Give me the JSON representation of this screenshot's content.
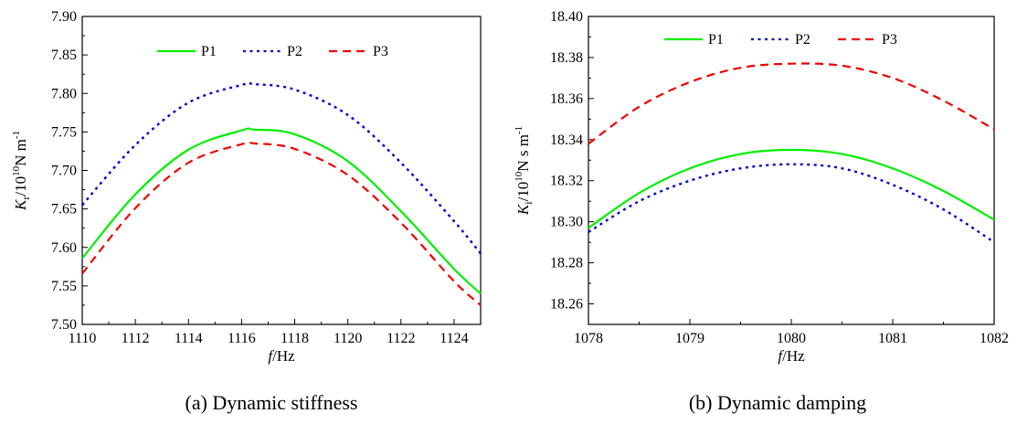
{
  "chart_data": [
    {
      "type": "line",
      "caption": "(a) Dynamic stiffness",
      "xlabel": {
        "italic": "f",
        "rest": "/Hz"
      },
      "ylabel": {
        "italic": "K",
        "sub": "r",
        "base": "/10",
        "exp": "10",
        "unit": "N  m",
        "unit_exp": "-1"
      },
      "xlim": [
        1110,
        1125
      ],
      "ylim": [
        7.5,
        7.9
      ],
      "xticks": [
        "1110",
        "1112",
        "1114",
        "1116",
        "1118",
        "1120",
        "1122",
        "1124"
      ],
      "yticks": [
        "7.50",
        "7.55",
        "7.60",
        "7.65",
        "7.70",
        "7.75",
        "7.80",
        "7.85",
        "7.90"
      ],
      "legend_position": "top-center",
      "series": [
        {
          "name": "P1",
          "color": "#00ee00",
          "style": "solid",
          "x": [
            1110,
            1112,
            1114,
            1116,
            1116.5,
            1118,
            1120,
            1122,
            1124,
            1125
          ],
          "y": [
            7.586,
            7.669,
            7.727,
            7.752,
            7.753,
            7.747,
            7.712,
            7.647,
            7.572,
            7.54
          ]
        },
        {
          "name": "P2",
          "color": "#0000cc",
          "style": "dotted",
          "x": [
            1110,
            1112,
            1114,
            1116,
            1116.5,
            1118,
            1120,
            1122,
            1124,
            1125
          ],
          "y": [
            7.655,
            7.733,
            7.788,
            7.811,
            7.812,
            7.805,
            7.772,
            7.71,
            7.634,
            7.592
          ]
        },
        {
          "name": "P3",
          "color": "#ee0000",
          "style": "dashed",
          "x": [
            1110,
            1112,
            1114,
            1116,
            1116.5,
            1118,
            1120,
            1122,
            1124,
            1125
          ],
          "y": [
            7.566,
            7.651,
            7.71,
            7.734,
            7.735,
            7.728,
            7.694,
            7.632,
            7.556,
            7.525
          ]
        }
      ]
    },
    {
      "type": "line",
      "caption": "(b) Dynamic damping",
      "xlabel": {
        "italic": "f",
        "rest": "/Hz"
      },
      "ylabel": {
        "italic": "K",
        "sub": "i",
        "base": "/10",
        "exp": "10",
        "unit": "N  s  m",
        "unit_exp": "-1"
      },
      "xlim": [
        1078,
        1082
      ],
      "ylim": [
        18.25,
        18.4
      ],
      "xticks": [
        "1078",
        "1079",
        "1080",
        "1081",
        "1082"
      ],
      "yticks": [
        "18.26",
        "18.28",
        "18.30",
        "18.32",
        "18.34",
        "18.36",
        "18.38",
        "18.40"
      ],
      "legend_position": "top-center",
      "series": [
        {
          "name": "P1",
          "color": "#00ee00",
          "style": "solid",
          "x": [
            1078,
            1078.5,
            1079,
            1079.5,
            1080,
            1080.5,
            1081,
            1081.5,
            1082
          ],
          "y": [
            18.297,
            18.314,
            18.326,
            18.333,
            18.335,
            18.333,
            18.326,
            18.315,
            18.301
          ]
        },
        {
          "name": "P2",
          "color": "#0000cc",
          "style": "dotted",
          "x": [
            1078,
            1078.5,
            1079,
            1079.5,
            1080,
            1080.5,
            1081,
            1081.5,
            1082
          ],
          "y": [
            18.295,
            18.31,
            18.32,
            18.326,
            18.328,
            18.326,
            18.318,
            18.306,
            18.29
          ]
        },
        {
          "name": "P3",
          "color": "#ee0000",
          "style": "dashed",
          "x": [
            1078,
            1078.5,
            1079,
            1079.5,
            1080,
            1080.5,
            1081,
            1081.5,
            1082
          ],
          "y": [
            18.338,
            18.356,
            18.368,
            18.375,
            18.377,
            18.376,
            18.37,
            18.359,
            18.345
          ]
        }
      ]
    }
  ]
}
